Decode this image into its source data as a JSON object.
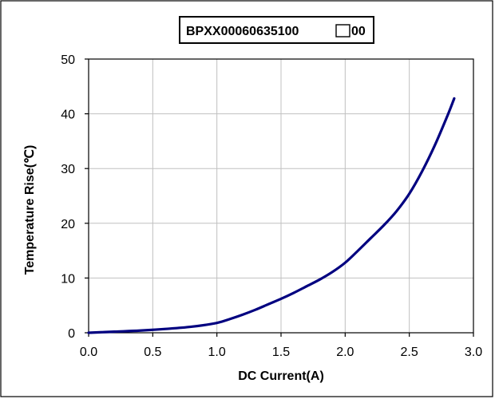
{
  "chart_data": {
    "type": "line",
    "title_prefix": "BPXX00060635100",
    "title_suffix": "00",
    "xlabel": "DC Current(A)",
    "ylabel": "Temperature Rise(℃)",
    "xlim": [
      0,
      3
    ],
    "ylim": [
      0,
      50
    ],
    "x_ticks": [
      "0.0",
      "0.5",
      "1.0",
      "1.5",
      "2.0",
      "2.5",
      "3.0"
    ],
    "y_ticks": [
      "0",
      "10",
      "20",
      "30",
      "40",
      "50"
    ],
    "grid": true,
    "line_color": "#000080",
    "series": [
      {
        "x": [
          0,
          0.2,
          0.4,
          0.6,
          0.8,
          1.0,
          1.1,
          1.2,
          1.3,
          1.4,
          1.5,
          1.6,
          1.7,
          1.8,
          1.9,
          2.0,
          2.1,
          2.2,
          2.3,
          2.4,
          2.5,
          2.6,
          2.7,
          2.8,
          2.85
        ],
        "y": [
          0,
          0.2,
          0.4,
          0.7,
          1.1,
          1.8,
          2.5,
          3.3,
          4.2,
          5.2,
          6.2,
          7.3,
          8.5,
          9.7,
          11.1,
          12.8,
          15.0,
          17.3,
          19.6,
          22.2,
          25.4,
          29.5,
          34.3,
          39.8,
          42.8
        ]
      }
    ]
  }
}
